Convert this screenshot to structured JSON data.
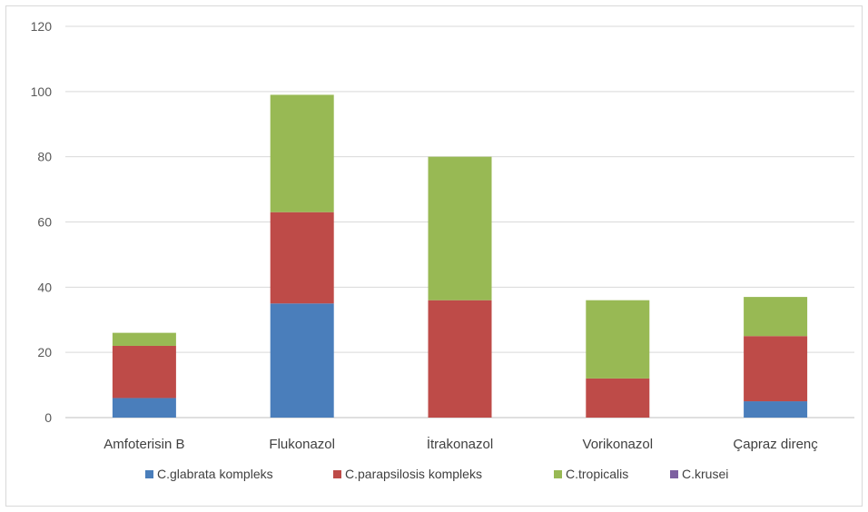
{
  "chart_data": {
    "type": "bar",
    "stacked": true,
    "categories": [
      "Amfoterisin B",
      "Flukonazol",
      "İtrakonazol",
      "Vorikonazol",
      "Çapraz direnç"
    ],
    "series": [
      {
        "name": "C.glabrata kompleks",
        "color": "#4a7ebb",
        "values": [
          6,
          35,
          0,
          0,
          5
        ]
      },
      {
        "name": "C.parapsilosis kompleks",
        "color": "#be4b48",
        "values": [
          16,
          28,
          36,
          12,
          20
        ]
      },
      {
        "name": "C.tropicalis",
        "color": "#98b954",
        "values": [
          4,
          36,
          44,
          24,
          12
        ]
      },
      {
        "name": "C.krusei",
        "color": "#7d60a0",
        "values": [
          0,
          0,
          0,
          0,
          0
        ]
      }
    ],
    "ylim": [
      0,
      120
    ],
    "yticks": [
      0,
      20,
      40,
      60,
      80,
      100,
      120
    ],
    "grid": true,
    "legend_position": "bottom"
  }
}
